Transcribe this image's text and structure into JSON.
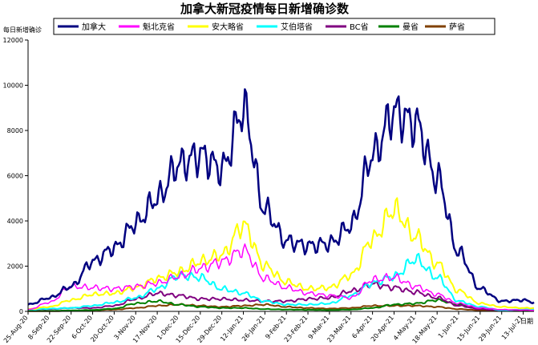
{
  "chart_data": {
    "type": "line",
    "title": "加拿大新冠疫情每日新增确诊数",
    "ylabel": "每日新增确诊",
    "xlabel": "日期",
    "ylim": [
      0,
      12000
    ],
    "yticks": [
      0,
      2000,
      4000,
      6000,
      8000,
      10000,
      12000
    ],
    "grid": false,
    "legend_position": "top",
    "x_tick_labels": [
      "25-Aug-20",
      "8-Sep-20",
      "22-Sep-20",
      "6-Oct-20",
      "20-Oct-20",
      "3-Nov-20",
      "17-Nov-20",
      "1-Dec-20",
      "15-Dec-20",
      "29-Dec-20",
      "12-Jan-21",
      "26-Jan-21",
      "9-Feb-21",
      "23-Feb-21",
      "9-Mar-21",
      "23-Mar-21",
      "6-Apr-21",
      "20-Apr-21",
      "4-May-21",
      "18-May-21",
      "1-Jun-21",
      "15-Jun-21",
      "29-Jun-21",
      "13-Jul-21"
    ],
    "x": [
      "25-Aug-20",
      "8-Sep-20",
      "22-Sep-20",
      "6-Oct-20",
      "20-Oct-20",
      "3-Nov-20",
      "17-Nov-20",
      "1-Dec-20",
      "15-Dec-20",
      "29-Dec-20",
      "12-Jan-21",
      "26-Jan-21",
      "9-Feb-21",
      "23-Feb-21",
      "9-Mar-21",
      "23-Mar-21",
      "6-Apr-21",
      "20-Apr-21",
      "4-May-21",
      "18-May-21",
      "1-Jun-21",
      "15-Jun-21",
      "29-Jun-21",
      "13-Jul-21",
      "20-Jul-21"
    ],
    "series": [
      {
        "name": "加拿大",
        "color": "#000080",
        "width": 2.5,
        "values": [
          300,
          600,
          1100,
          2200,
          2800,
          3900,
          5000,
          6500,
          6900,
          6300,
          8900,
          4500,
          3100,
          2900,
          3000,
          3800,
          6900,
          8800,
          8300,
          5900,
          2600,
          1000,
          450,
          500,
          400
        ]
      },
      {
        "name": "魁北克省",
        "color": "#ff00ff",
        "width": 1.5,
        "values": [
          80,
          400,
          1100,
          1050,
          1000,
          1100,
          1250,
          1550,
          1900,
          2200,
          2700,
          1450,
          1050,
          800,
          700,
          600,
          1400,
          1500,
          1100,
          750,
          350,
          150,
          80,
          60,
          50
        ]
      },
      {
        "name": "安大略省",
        "color": "#ffff00",
        "width": 2,
        "values": [
          100,
          200,
          500,
          750,
          800,
          1050,
          1450,
          1750,
          2200,
          2500,
          3800,
          2000,
          1300,
          1000,
          1050,
          1600,
          3200,
          4500,
          3300,
          2100,
          900,
          350,
          200,
          150,
          150
        ]
      },
      {
        "name": "艾伯塔省",
        "color": "#00ffff",
        "width": 2,
        "values": [
          80,
          120,
          150,
          250,
          400,
          600,
          1000,
          1600,
          1500,
          1000,
          800,
          450,
          300,
          300,
          350,
          700,
          1250,
          1550,
          2300,
          1500,
          450,
          200,
          50,
          80,
          90
        ]
      },
      {
        "name": "BC省",
        "color": "#800080",
        "width": 2,
        "values": [
          80,
          100,
          150,
          150,
          250,
          550,
          800,
          700,
          550,
          550,
          500,
          450,
          450,
          550,
          600,
          900,
          1200,
          1050,
          850,
          600,
          250,
          100,
          50,
          60,
          60
        ]
      },
      {
        "name": "曼省",
        "color": "#008000",
        "width": 2,
        "values": [
          20,
          20,
          40,
          60,
          120,
          350,
          450,
          300,
          200,
          150,
          150,
          100,
          80,
          70,
          60,
          80,
          150,
          300,
          350,
          500,
          300,
          150,
          50,
          30,
          30
        ]
      },
      {
        "name": "萨省",
        "color": "#804000",
        "width": 2,
        "values": [
          10,
          10,
          20,
          50,
          80,
          150,
          250,
          300,
          250,
          200,
          250,
          300,
          200,
          150,
          120,
          150,
          250,
          250,
          250,
          200,
          100,
          50,
          30,
          40,
          80
        ]
      }
    ]
  }
}
